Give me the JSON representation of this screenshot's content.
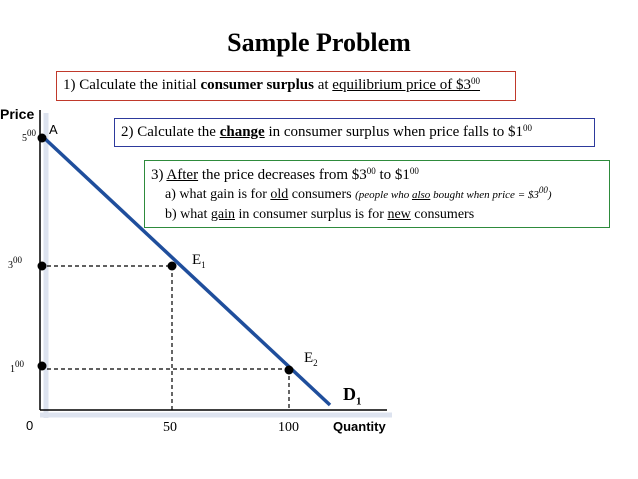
{
  "title": "Sample Problem",
  "q1": {
    "prefix": "1) Calculate the initial ",
    "bold": "consumer surplus",
    "mid": " at ",
    "underlined": "equilibrium price of $3",
    "sup": "00"
  },
  "q2": {
    "prefix": "2) Calculate the ",
    "bold_underlined": "change",
    "rest": " in consumer surplus when price falls to $1",
    "sup": "00"
  },
  "q3": {
    "line1_num": "3) ",
    "line1_u": "After",
    "line1_rest": " the price decreases from $3",
    "line1_sup1": "00",
    "line1_to": " to $1",
    "line1_sup2": "00",
    "line2_a": "a) what gain is for ",
    "line2_u": "old",
    "line2_b": " consumers ",
    "line2_paren1": "(people who ",
    "line2_paren_u": "also",
    "line2_paren2": " bought when price = $3",
    "line2_paren_sup": "00",
    "line2_paren3": ")",
    "line3_a": "b) what ",
    "line3_u1": "gain",
    "line3_b": " in consumer surplus is for ",
    "line3_u2": "new",
    "line3_c": " consumers"
  },
  "axes": {
    "y_label": "Price",
    "x_label": "Quantity",
    "origin": "0",
    "y_ticks": [
      {
        "base": "5",
        "sup": "00",
        "value": 5
      },
      {
        "base": "3",
        "sup": "00",
        "value": 3
      },
      {
        "base": "1",
        "sup": "00",
        "value": 1
      }
    ],
    "x_ticks": [
      "50",
      "100"
    ]
  },
  "points": {
    "A": "A",
    "E1_base": "E",
    "E1_sub": "1",
    "E2_base": "E",
    "E2_sub": "2"
  },
  "demand": {
    "base": "D",
    "sub": "1"
  },
  "colors": {
    "demand_line": "#1f4e9c",
    "q1_border": "#c0392b",
    "q2_border": "#2d3a9c",
    "q3_border": "#2e8b3c"
  }
}
